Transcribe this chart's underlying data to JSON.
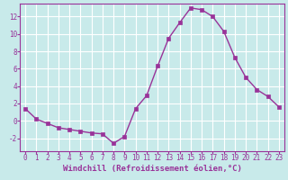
{
  "x": [
    0,
    1,
    2,
    3,
    4,
    5,
    6,
    7,
    8,
    9,
    10,
    11,
    12,
    13,
    14,
    15,
    16,
    17,
    18,
    19,
    20,
    21,
    22,
    23
  ],
  "y": [
    1.4,
    0.2,
    -0.3,
    -0.8,
    -1.0,
    -1.2,
    -1.4,
    -1.5,
    -2.6,
    -1.8,
    1.4,
    2.9,
    6.3,
    9.5,
    11.3,
    13.0,
    12.8,
    12.0,
    10.3,
    7.3,
    5.0,
    3.6,
    2.8,
    1.6
  ],
  "line_color": "#993399",
  "marker": "s",
  "marker_size": 2.5,
  "bg_color": "#c8eaea",
  "grid_color": "#ffffff",
  "xlabel": "Windchill (Refroidissement éolien,°C)",
  "xlabel_color": "#993399",
  "tick_color": "#993399",
  "ylim": [
    -3.5,
    13.5
  ],
  "xlim": [
    -0.5,
    23.5
  ],
  "yticks": [
    -2,
    0,
    2,
    4,
    6,
    8,
    10,
    12
  ],
  "xticks": [
    0,
    1,
    2,
    3,
    4,
    5,
    6,
    7,
    8,
    9,
    10,
    11,
    12,
    13,
    14,
    15,
    16,
    17,
    18,
    19,
    20,
    21,
    22,
    23
  ],
  "tick_fontsize": 5.5,
  "xlabel_fontsize": 6.5,
  "linewidth": 1.0
}
